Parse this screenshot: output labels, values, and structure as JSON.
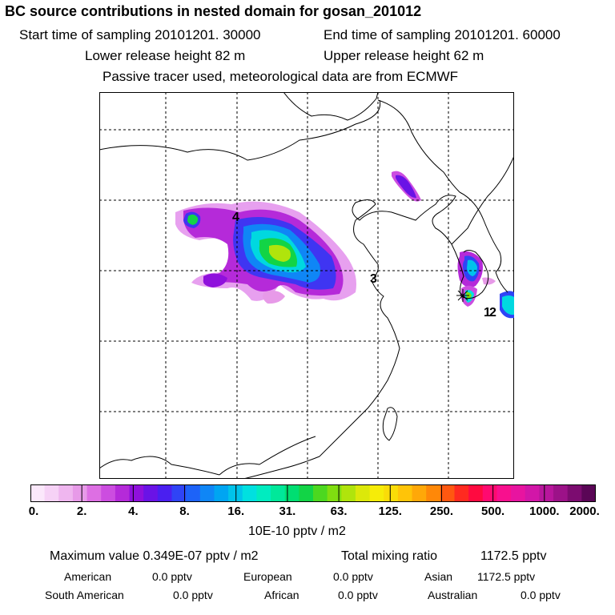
{
  "title": "BC  source contributions in nested domain for gosan_201012",
  "start_time": "Start time of sampling 20101201. 30000",
  "end_time": "End time of sampling 20101201. 60000",
  "lower_release": "Lower release height   82 m",
  "upper_release": "Upper release height   62 m",
  "tracer_note": "Passive tracer used, meteorological data are from ECMWF",
  "map": {
    "labels": [
      "4",
      "3",
      "1",
      "2"
    ]
  },
  "colorbar": {
    "ticks": [
      "0.",
      "2.",
      "4.",
      "8.",
      "16.",
      "31.",
      "63.",
      "125.",
      "250.",
      "500.",
      "1000.",
      "2000."
    ],
    "units": "10E-10 pptv / m2",
    "colors": [
      "#fbe8fb",
      "#f6d2f6",
      "#efb6ef",
      "#e79ae8",
      "#dd6fe3",
      "#cc4de0",
      "#b52ad9",
      "#8f10dc",
      "#6a13e6",
      "#4a1ff0",
      "#2f44f6",
      "#1d63f8",
      "#0f86f6",
      "#00a5f2",
      "#00c3ea",
      "#00e0e0",
      "#00ecc0",
      "#00e89a",
      "#00de72",
      "#12d446",
      "#4cd820",
      "#80de10",
      "#b0e40c",
      "#dce80a",
      "#f6ec08",
      "#fadc08",
      "#ffc408",
      "#ffa808",
      "#ff8808",
      "#ff5810",
      "#ff2a20",
      "#ff0a40",
      "#ff0a70",
      "#f8108e",
      "#e814a0",
      "#d216a8",
      "#b8169c",
      "#9c1288",
      "#7c0c70",
      "#5a0656"
    ]
  },
  "summary": {
    "max_value": "Maximum value  0.349E-07 pptv / m2",
    "total_label": "Total mixing ratio",
    "total_value": "1172.5 pptv",
    "american_label": "American",
    "american_value": "0.0 pptv",
    "european_label": "European",
    "european_value": "0.0 pptv",
    "asian_label": "Asian",
    "asian_value": "1172.5 pptv",
    "south_american_label": "South American",
    "south_american_value": "0.0 pptv",
    "african_label": "African",
    "african_value": "0.0 pptv",
    "australian_label": "Australian",
    "australian_value": "0.0 pptv"
  }
}
